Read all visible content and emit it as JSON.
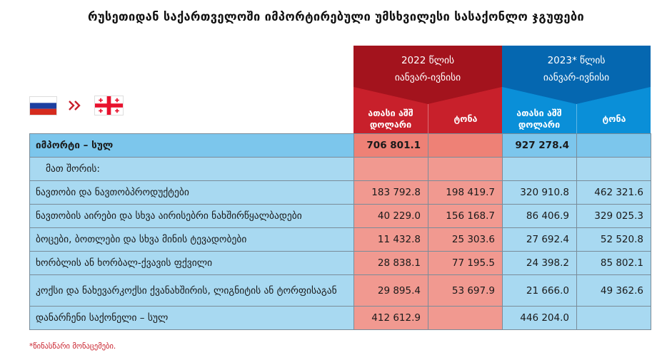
{
  "title": "რუსეთიდან საქართველოში იმპორტირებული უმსხვილესი სასაქონლო ჯგუფები",
  "flags": {
    "from": "russia-flag-icon",
    "arrow": "double-chevron-right-icon",
    "to": "georgia-flag-icon"
  },
  "colors": {
    "red": "#c8202b",
    "blue": "#0a8fd8",
    "red_cell": "#f19990",
    "blue_cell": "#a8d9f1"
  },
  "header": {
    "y2022": {
      "line1": "2022 წლის",
      "line2": "იანვარ-ივნისი",
      "col_usd": "ათასი აშშ დოლარი",
      "col_ton": "ტონა"
    },
    "y2023": {
      "line1": "2023* წლის",
      "line2": "იანვარ-ივნისი",
      "col_usd": "ათასი აშშ დოლარი",
      "col_ton": "ტონა"
    }
  },
  "rows": [
    {
      "label": "იმპორტი – სულ",
      "usd22": "706 801.1",
      "ton22": "",
      "usd23": "927 278.4",
      "ton23": ""
    },
    {
      "label": "მათ შორის:",
      "usd22": "",
      "ton22": "",
      "usd23": "",
      "ton23": ""
    },
    {
      "label": "ნავთობი და ნავთობპროდუქტები",
      "usd22": "183 792.8",
      "ton22": "198 419.7",
      "usd23": "320 910.8",
      "ton23": "462 321.6"
    },
    {
      "label": "ნავთობის აირები და სხვა აირისებრი ნახშირწყალბადები",
      "usd22": "40 229.0",
      "ton22": "156 168.7",
      "usd23": "86 406.9",
      "ton23": "329 025.3"
    },
    {
      "label": "ბოცები, ბოთლები და სხვა მინის ტევადობები",
      "usd22": "11 432.8",
      "ton22": "25 303.6",
      "usd23": "27 692.4",
      "ton23": "52 520.8"
    },
    {
      "label": "ხორბლის ან ხორბალ-ქვავის ფქვილი",
      "usd22": "28 838.1",
      "ton22": "77 195.5",
      "usd23": "24 398.2",
      "ton23": "85 802.1"
    },
    {
      "label": "კოქსი და ნახევარკოქსი ქვანახშირის, ლიგნიტის ან ტორფისაგან",
      "usd22": "29 895.4",
      "ton22": "53 697.9",
      "usd23": "21 666.0",
      "ton23": "49 362.6"
    },
    {
      "label": "დანარჩენი საქონელი – სულ",
      "usd22": "412 612.9",
      "ton22": "",
      "usd23": "446 204.0",
      "ton23": ""
    }
  ],
  "footnote": "*წინასწარი მონაცემები."
}
